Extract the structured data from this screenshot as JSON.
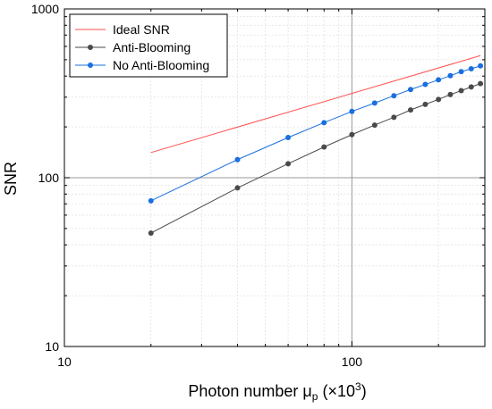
{
  "chart_data": {
    "type": "line",
    "xlabel": "Photon number μ",
    "xlabel_sub": "p",
    "xlabel_unit_prefix": " (×10",
    "xlabel_unit_sup": "3",
    "xlabel_unit_suffix": ")",
    "ylabel": "SNR",
    "xscale": "log",
    "yscale": "log",
    "xlim": [
      10,
      290
    ],
    "ylim": [
      10,
      1000
    ],
    "x_ticks": [
      10,
      100
    ],
    "x_tick_labels": [
      "10",
      "100"
    ],
    "y_ticks": [
      10,
      100,
      1000
    ],
    "y_tick_labels": [
      "10",
      "100",
      "1000"
    ],
    "grid": true,
    "reference_lines": {
      "x": 100,
      "y": 100
    },
    "legend_position": "top-left",
    "series": [
      {
        "name": "Ideal SNR",
        "color": "#ff4d4d",
        "markers": false,
        "x": [
          20,
          280
        ],
        "y": [
          141,
          529
        ]
      },
      {
        "name": "Anti-Blooming",
        "color": "#4a4a4a",
        "markers": true,
        "x": [
          20,
          40,
          60,
          80,
          100,
          120,
          140,
          160,
          180,
          200,
          220,
          240,
          260,
          280
        ],
        "y": [
          47,
          87,
          121,
          152,
          180,
          205,
          228,
          252,
          272,
          291,
          311,
          328,
          345,
          361
        ]
      },
      {
        "name": "No Anti-Blooming",
        "color": "#1a6fe0",
        "markers": true,
        "x": [
          20,
          40,
          60,
          80,
          100,
          120,
          140,
          160,
          180,
          200,
          220,
          240,
          260,
          280
        ],
        "y": [
          73,
          128,
          173,
          212,
          247,
          277,
          306,
          333,
          357,
          380,
          402,
          425,
          442,
          460
        ]
      }
    ]
  }
}
